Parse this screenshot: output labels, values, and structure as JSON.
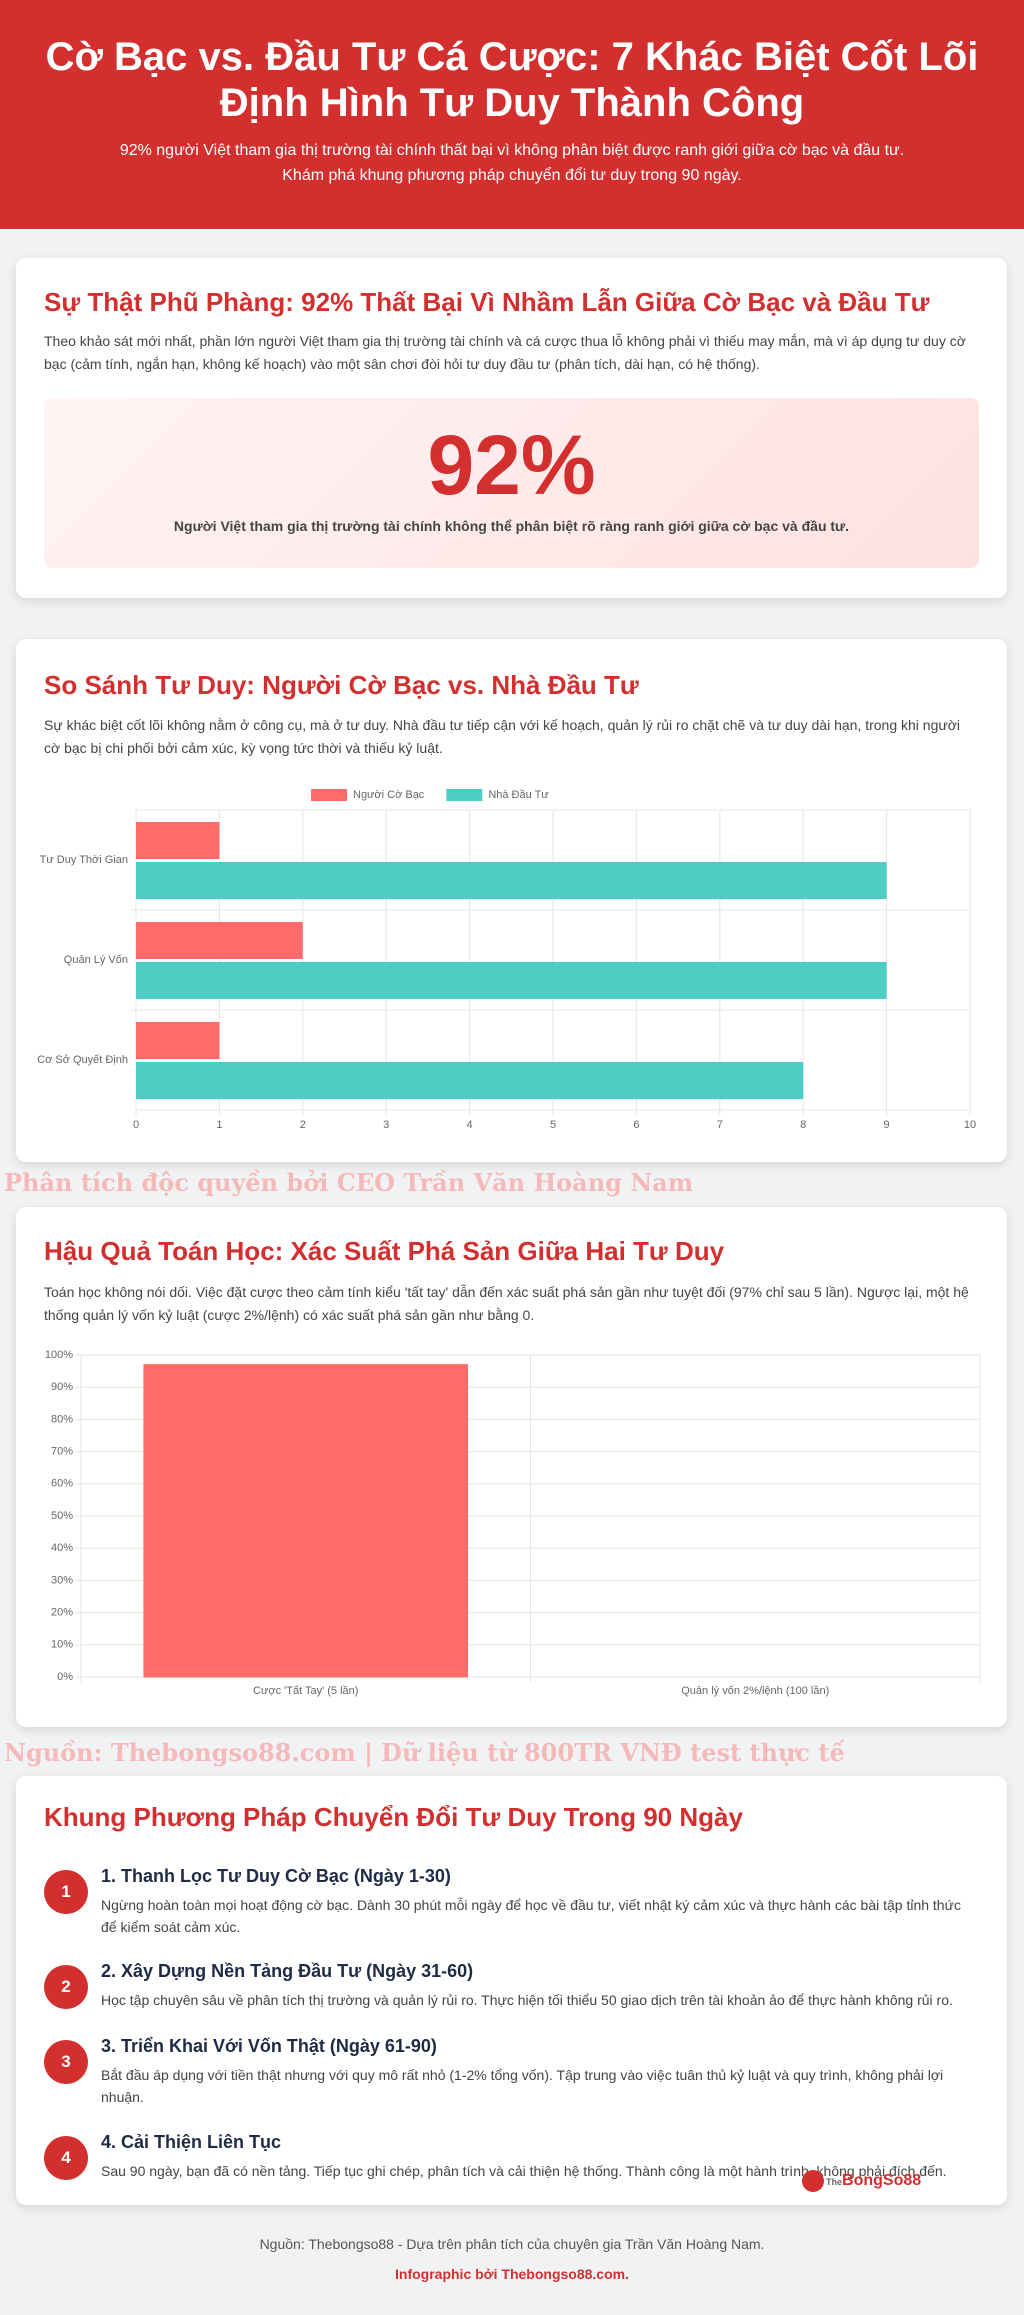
{
  "header": {
    "title": "Cờ Bạc vs. Đầu Tư Cá Cược: 7 Khác Biệt Cốt Lõi Định Hình Tư Duy Thành Công",
    "subtitle": "92% người Việt tham gia thị trường tài chính thất bại vì không phân biệt được ranh giới giữa cờ bạc và đầu tư. Khám phá khung phương pháp chuyển đổi tư duy trong 90 ngày."
  },
  "sections": [
    {
      "title": "Sự Thật Phũ Phàng: 92% Thất Bại Vì Nhầm Lẫn Giữa Cờ Bạc và Đầu Tư",
      "text": "Theo khảo sát mới nhất, phần lớn người Việt tham gia thị trường tài chính và cá cược thua lỗ không phải vì thiếu may mắn, mà vì áp dụng tư duy cờ bạc (cảm tính, ngắn hạn, không kế hoạch) vào một sân chơi đòi hỏi tư duy đầu tư (phân tích, dài hạn, có hệ thống).",
      "stat": {
        "value": "92%",
        "caption": "Người Việt tham gia thị trường tài chính không thể phân biệt rõ ràng ranh giới giữa cờ bạc và đầu tư."
      }
    },
    {
      "title": "So Sánh Tư Duy: Người Cờ Bạc vs. Nhà Đầu Tư",
      "text": "Sự khác biệt cốt lõi không nằm ở công cụ, mà ở tư duy. Nhà đầu tư tiếp cận với kế hoạch, quản lý rủi ro chặt chẽ và tư duy dài hạn, trong khi người cờ bạc bị chi phối bởi cảm xúc, kỳ vọng tức thời và thiếu kỷ luật."
    },
    {
      "title": "Hậu Quả Toán Học: Xác Suất Phá Sản Giữa Hai Tư Duy",
      "text": "Toán học không nói dối. Việc đặt cược theo cảm tính kiểu 'tất tay' dẫn đến xác suất phá sản gần như tuyệt đối (97% chỉ sau 5 lần). Ngược lại, một hệ thống quản lý vốn kỷ luật (cược 2%/lệnh) có xác suất phá sản gần như bằng 0."
    },
    {
      "title": "Khung Phương Pháp Chuyển Đổi Tư Duy Trong 90 Ngày",
      "steps": [
        {
          "badge": "1",
          "title": "1. Thanh Lọc Tư Duy Cờ Bạc (Ngày 1-30)",
          "text": "Ngừng hoàn toàn mọi hoạt động cờ bạc. Dành 30 phút mỗi ngày để học về đầu tư, viết nhật ký cảm xúc và thực hành các bài tập tỉnh thức để kiểm soát cảm xúc."
        },
        {
          "badge": "2",
          "title": "2. Xây Dựng Nền Tảng Đầu Tư (Ngày 31-60)",
          "text": "Học tập chuyên sâu về phân tích thị trường và quản lý rủi ro. Thực hiện tối thiểu 50 giao dịch trên tài khoản ảo để thực hành không rủi ro."
        },
        {
          "badge": "3",
          "title": "3. Triển Khai Với Vốn Thật (Ngày 61-90)",
          "text": "Bắt đầu áp dụng với tiền thật nhưng với quy mô rất nhỏ (1-2% tổng vốn). Tập trung vào việc tuân thủ kỷ luật và quy trình, không phải lợi nhuận."
        },
        {
          "badge": "4",
          "title": "4. Cải Thiện Liên Tục",
          "text": "Sau 90 ngày, bạn đã có nền tảng. Tiếp tục ghi chép, phân tích và cải thiện hệ thống. Thành công là một hành trình, không phải đích đến."
        }
      ]
    }
  ],
  "watermarks": [
    "Phân tích độc quyền bởi CEO Trần Văn Hoàng Nam",
    "Nguồn: Thebongso88.com | Dữ liệu từ 800TR VNĐ test thực tế"
  ],
  "logo": {
    "prefix": "The",
    "name": "BongSo88"
  },
  "footer": {
    "source": "Nguồn: Thebongso88 - Dựa trên phân tích của chuyên gia Trần Văn Hoàng Nam.",
    "credit": "Infographic bởi Thebongso88.com."
  },
  "chart_data": [
    {
      "type": "bar",
      "orientation": "horizontal",
      "categories": [
        "Tư Duy Thời Gian",
        "Quản Lý Vốn",
        "Cơ Sở Quyết Định"
      ],
      "series": [
        {
          "name": "Người Cờ Bạc",
          "color": "#ff6b6b",
          "values": [
            1,
            2,
            1
          ]
        },
        {
          "name": "Nhà Đầu Tư",
          "color": "#4ecdc4",
          "values": [
            9,
            9,
            8
          ]
        }
      ],
      "xlim": [
        0,
        10
      ],
      "xticks": [
        0,
        1,
        2,
        3,
        4,
        5,
        6,
        7,
        8,
        9,
        10
      ],
      "grid": true,
      "legend": "top"
    },
    {
      "type": "bar",
      "orientation": "vertical",
      "categories": [
        "Cược 'Tất Tay' (5 lần)",
        "Quản lý vốn 2%/lệnh (100 lần)"
      ],
      "values": [
        97,
        0
      ],
      "colors": [
        "#ff6b6b",
        "#9fd3f2"
      ],
      "ylim": [
        0,
        100
      ],
      "yticks": [
        {
          "value": 0,
          "label": "0%"
        },
        {
          "value": 10,
          "label": "10%"
        },
        {
          "value": 20,
          "label": "20%"
        },
        {
          "value": 30,
          "label": "30%"
        },
        {
          "value": 40,
          "label": "40%"
        },
        {
          "value": 50,
          "label": "50%"
        },
        {
          "value": 60,
          "label": "60%"
        },
        {
          "value": 70,
          "label": "70%"
        },
        {
          "value": 80,
          "label": "80%"
        },
        {
          "value": 90,
          "label": "90%"
        },
        {
          "value": 100,
          "label": "100%"
        }
      ],
      "grid": true
    }
  ]
}
